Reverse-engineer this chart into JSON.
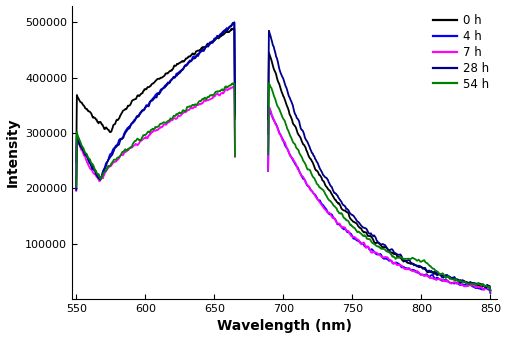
{
  "title": "",
  "xlabel": "Wavelength (nm)",
  "ylabel": "Intensity",
  "xlim": [
    547,
    855
  ],
  "ylim": [
    0,
    530000
  ],
  "yticks": [
    100000,
    200000,
    300000,
    400000,
    500000
  ],
  "xticks": [
    550,
    600,
    650,
    700,
    750,
    800,
    850
  ],
  "legend_labels": [
    "0 h",
    "4 h",
    "7 h",
    "28 h",
    "54 h"
  ],
  "colors": [
    "black",
    "#0000ff",
    "#ff00ff",
    "#00008B",
    "#008000"
  ],
  "linewidth": 1.3,
  "gap_start": 666,
  "gap_end": 688
}
